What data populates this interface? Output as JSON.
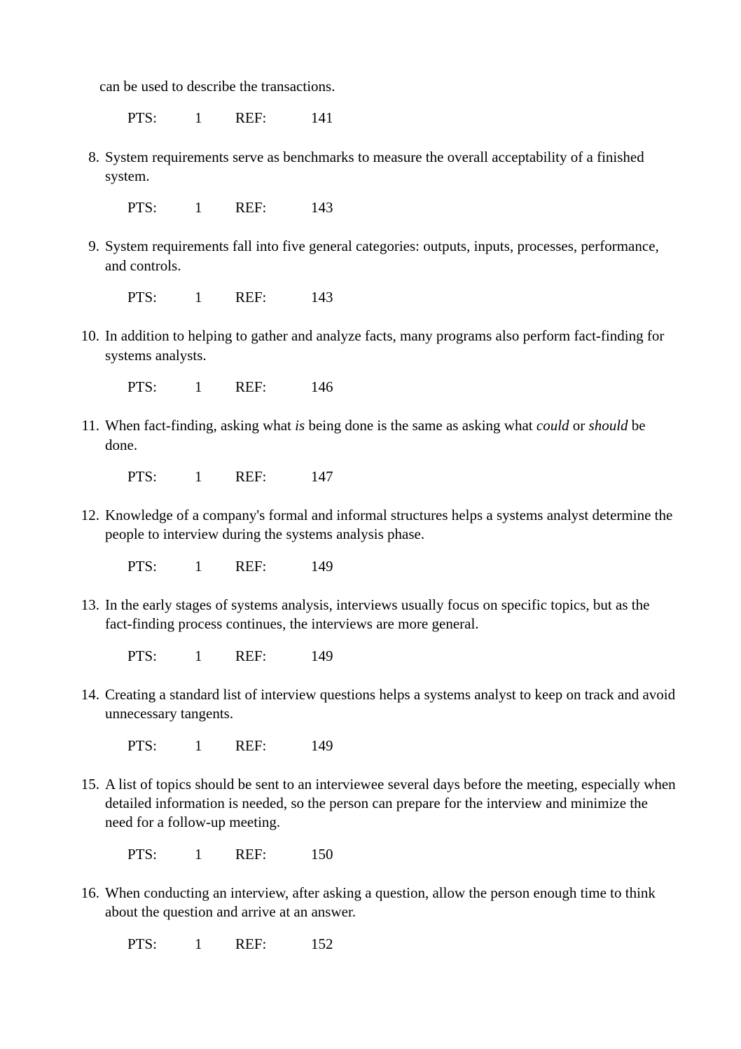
{
  "fragment": "can be used to describe the transactions.",
  "fragment_pts": "1",
  "fragment_ref": "141",
  "labels": {
    "pts": "PTS:",
    "ref": "REF:"
  },
  "questions": [
    {
      "num": "8.",
      "text": "System requirements serve as benchmarks to measure the overall acceptability of a finished system.",
      "pts": "1",
      "ref": "143"
    },
    {
      "num": "9.",
      "text": "System requirements fall into five general categories: outputs, inputs, processes, performance, and controls.",
      "pts": "1",
      "ref": "143"
    },
    {
      "num": "10.",
      "text": "In addition to helping to gather and analyze facts, many programs also perform fact-finding for systems analysts.",
      "pts": "1",
      "ref": "146"
    },
    {
      "num": "11.",
      "text_parts": [
        {
          "t": "When fact-finding, asking what ",
          "i": false
        },
        {
          "t": "is",
          "i": true
        },
        {
          "t": " being done is the same as asking what ",
          "i": false
        },
        {
          "t": "could",
          "i": true
        },
        {
          "t": " or ",
          "i": false
        },
        {
          "t": "should",
          "i": true
        },
        {
          "t": " be done.",
          "i": false
        }
      ],
      "pts": "1",
      "ref": "147"
    },
    {
      "num": "12.",
      "text": "Knowledge of a company's formal and informal structures helps a systems analyst determine the people to interview during the systems analysis phase.",
      "pts": "1",
      "ref": "149"
    },
    {
      "num": "13.",
      "text": "In the early stages of systems analysis, interviews usually focus on specific topics, but as the fact-finding process continues, the interviews are more general.",
      "pts": "1",
      "ref": "149"
    },
    {
      "num": "14.",
      "text": "Creating a standard list of interview questions helps a systems analyst to keep on track and avoid unnecessary tangents.",
      "pts": "1",
      "ref": "149"
    },
    {
      "num": "15.",
      "text": "A list of topics should be sent to an interviewee several days before the meeting, especially when detailed information is needed, so the person can prepare for the interview and minimize the need for a follow-up meeting.",
      "pts": "1",
      "ref": "150"
    },
    {
      "num": "16.",
      "text": "When conducting an interview, after asking a question, allow the person enough time to think about the question and arrive at an answer.",
      "pts": "1",
      "ref": "152"
    }
  ]
}
